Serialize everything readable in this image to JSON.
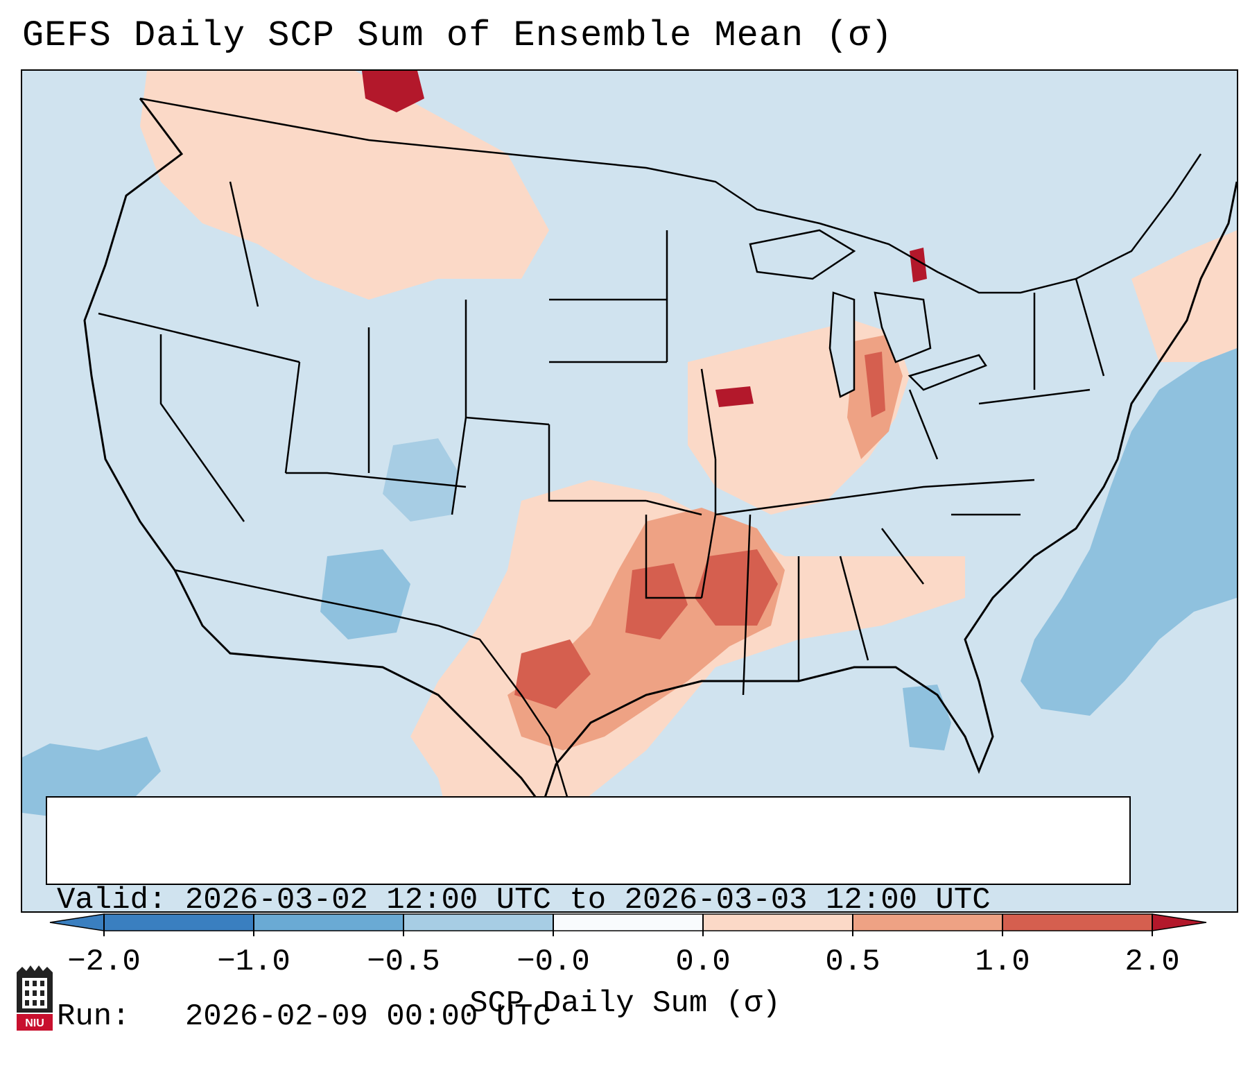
{
  "title": "GEFS Daily SCP Sum of Ensemble Mean (σ)",
  "info": {
    "valid_label": "Valid:",
    "valid_value": "2026-03-02 12:00 UTC to 2026-03-03 12:00 UTC",
    "run_label": "Run:",
    "run_value": "2026-02-09 00:00 UTC"
  },
  "colorbar": {
    "label": "SCP Daily Sum (σ)",
    "ticks": [
      "−2.0",
      "−1.0",
      "−0.5",
      "−0.0",
      "0.0",
      "0.5",
      "1.0",
      "2.0"
    ],
    "colors": [
      "#3a7fc0",
      "#6aaad4",
      "#a7cde4",
      "#d0e3ef",
      "#f9fbfd",
      "#fbd9c7",
      "#eea284",
      "#d55f4f",
      "#b3182b"
    ]
  },
  "logo": {
    "text": "NIU",
    "color": "#c8102e"
  },
  "map": {
    "ocean_color": "#d0e3ef",
    "light_positive": "#fbd9c7",
    "mid_positive": "#eea284",
    "strong_positive": "#d55f4f",
    "extreme_positive": "#b3182b",
    "light_negative": "#a7cde4",
    "mid_negative": "#8fc1de"
  }
}
